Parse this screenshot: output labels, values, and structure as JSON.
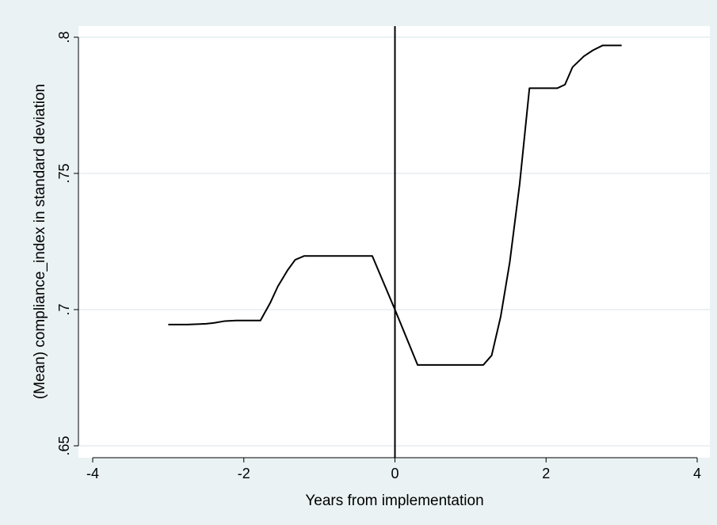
{
  "chart_data": {
    "type": "line",
    "title": "",
    "xlabel": "Years from implementation",
    "ylabel": "(Mean) compliance_index in standard deviation",
    "xlim": [
      -4,
      4
    ],
    "ylim": [
      0.65,
      0.8
    ],
    "x_ticks": [
      {
        "value": -4,
        "label": "-4"
      },
      {
        "value": -2,
        "label": "-2"
      },
      {
        "value": 0,
        "label": "0"
      },
      {
        "value": 2,
        "label": "2"
      },
      {
        "value": 4,
        "label": "4"
      }
    ],
    "y_ticks": [
      {
        "value": 0.65,
        "label": ".65"
      },
      {
        "value": 0.7,
        "label": ".7"
      },
      {
        "value": 0.75,
        "label": ".75"
      },
      {
        "value": 0.8,
        "label": ".8"
      }
    ],
    "grid": true,
    "reference_line_x": 0,
    "series": [
      {
        "color": "#000000",
        "points": [
          [
            -3.0,
            0.6945
          ],
          [
            -2.75,
            0.6945
          ],
          [
            -2.5,
            0.6948
          ],
          [
            -2.4,
            0.6951
          ],
          [
            -2.25,
            0.6958
          ],
          [
            -2.1,
            0.696
          ],
          [
            -1.9,
            0.696
          ],
          [
            -1.78,
            0.696
          ],
          [
            -1.65,
            0.7025
          ],
          [
            -1.55,
            0.7085
          ],
          [
            -1.42,
            0.7145
          ],
          [
            -1.32,
            0.7183
          ],
          [
            -1.2,
            0.7197
          ],
          [
            -1.0,
            0.7197
          ],
          [
            -0.6,
            0.7197
          ],
          [
            -0.3,
            0.7197
          ],
          [
            0.0,
            0.7
          ],
          [
            0.3,
            0.6797
          ],
          [
            0.6,
            0.6797
          ],
          [
            0.9,
            0.6797
          ],
          [
            1.17,
            0.6797
          ],
          [
            1.28,
            0.6832
          ],
          [
            1.4,
            0.6975
          ],
          [
            1.52,
            0.7175
          ],
          [
            1.65,
            0.746
          ],
          [
            1.78,
            0.7813
          ],
          [
            2.0,
            0.7813
          ],
          [
            2.15,
            0.7813
          ],
          [
            2.25,
            0.7826
          ],
          [
            2.35,
            0.789
          ],
          [
            2.5,
            0.793
          ],
          [
            2.62,
            0.7952
          ],
          [
            2.75,
            0.797
          ],
          [
            3.0,
            0.797
          ]
        ]
      }
    ]
  }
}
